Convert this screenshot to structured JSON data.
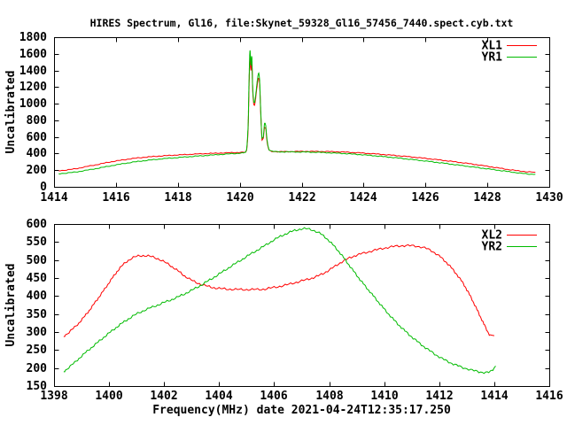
{
  "title": "HIRES Spectrum, Gl16, file:Skynet_59328_Gl16_57456_7440.spect.cyb.txt",
  "colors": {
    "series_red": "#ff0000",
    "series_green": "#00bb00",
    "axis": "#000000",
    "background": "#ffffff"
  },
  "chart_data": [
    {
      "type": "line",
      "title": "",
      "xlabel": "",
      "ylabel": "Uncalibrated",
      "xlim": [
        1414,
        1430
      ],
      "ylim": [
        0,
        1800
      ],
      "xticks": [
        1414,
        1416,
        1418,
        1420,
        1422,
        1424,
        1426,
        1428,
        1430
      ],
      "yticks": [
        0,
        200,
        400,
        600,
        800,
        1000,
        1200,
        1400,
        1600,
        1800
      ],
      "grid": false,
      "legend_position": "top-right-inside",
      "series": [
        {
          "name": "XL1",
          "color": "#ff0000",
          "points": [
            [
              1414.15,
              195
            ],
            [
              1414.4,
              202
            ],
            [
              1414.7,
              218
            ],
            [
              1415.0,
              240
            ],
            [
              1415.4,
              268
            ],
            [
              1415.8,
              298
            ],
            [
              1416.2,
              322
            ],
            [
              1416.6,
              343
            ],
            [
              1417.0,
              358
            ],
            [
              1417.5,
              372
            ],
            [
              1418.0,
              383
            ],
            [
              1418.5,
              393
            ],
            [
              1419.0,
              401
            ],
            [
              1419.5,
              408
            ],
            [
              1420.0,
              414
            ],
            [
              1420.15,
              416
            ],
            [
              1420.22,
              440
            ],
            [
              1420.27,
              700
            ],
            [
              1420.3,
              1200
            ],
            [
              1420.33,
              1570
            ],
            [
              1420.36,
              1400
            ],
            [
              1420.39,
              1500
            ],
            [
              1420.42,
              1150
            ],
            [
              1420.46,
              980
            ],
            [
              1420.5,
              1030
            ],
            [
              1420.55,
              1180
            ],
            [
              1420.6,
              1300
            ],
            [
              1420.64,
              1240
            ],
            [
              1420.68,
              860
            ],
            [
              1420.72,
              560
            ],
            [
              1420.76,
              580
            ],
            [
              1420.8,
              720
            ],
            [
              1420.84,
              700
            ],
            [
              1420.88,
              550
            ],
            [
              1420.93,
              460
            ],
            [
              1421.0,
              430
            ],
            [
              1421.3,
              423
            ],
            [
              1421.8,
              425
            ],
            [
              1422.3,
              426
            ],
            [
              1422.8,
              424
            ],
            [
              1423.3,
              419
            ],
            [
              1423.8,
              410
            ],
            [
              1424.3,
              398
            ],
            [
              1424.8,
              384
            ],
            [
              1425.3,
              368
            ],
            [
              1425.8,
              350
            ],
            [
              1426.3,
              330
            ],
            [
              1426.8,
              308
            ],
            [
              1427.3,
              284
            ],
            [
              1427.8,
              258
            ],
            [
              1428.3,
              230
            ],
            [
              1428.7,
              207
            ],
            [
              1429.1,
              188
            ],
            [
              1429.35,
              179
            ],
            [
              1429.55,
              176
            ]
          ]
        },
        {
          "name": "YR1",
          "color": "#00bb00",
          "points": [
            [
              1414.15,
              158
            ],
            [
              1414.4,
              165
            ],
            [
              1414.7,
              178
            ],
            [
              1415.0,
              196
            ],
            [
              1415.4,
              222
            ],
            [
              1415.8,
              250
            ],
            [
              1416.2,
              276
            ],
            [
              1416.6,
              299
            ],
            [
              1417.0,
              318
            ],
            [
              1417.5,
              337
            ],
            [
              1418.0,
              352
            ],
            [
              1418.5,
              366
            ],
            [
              1419.0,
              379
            ],
            [
              1419.5,
              392
            ],
            [
              1420.0,
              405
            ],
            [
              1420.15,
              412
            ],
            [
              1420.22,
              450
            ],
            [
              1420.27,
              750
            ],
            [
              1420.3,
              1280
            ],
            [
              1420.33,
              1640
            ],
            [
              1420.36,
              1460
            ],
            [
              1420.39,
              1560
            ],
            [
              1420.42,
              1180
            ],
            [
              1420.46,
              1010
            ],
            [
              1420.5,
              1060
            ],
            [
              1420.55,
              1220
            ],
            [
              1420.6,
              1360
            ],
            [
              1420.64,
              1290
            ],
            [
              1420.68,
              890
            ],
            [
              1420.72,
              580
            ],
            [
              1420.76,
              600
            ],
            [
              1420.8,
              760
            ],
            [
              1420.84,
              730
            ],
            [
              1420.88,
              570
            ],
            [
              1420.93,
              470
            ],
            [
              1421.0,
              432
            ],
            [
              1421.3,
              421
            ],
            [
              1421.8,
              420
            ],
            [
              1422.3,
              417
            ],
            [
              1422.8,
              411
            ],
            [
              1423.3,
              402
            ],
            [
              1423.8,
              390
            ],
            [
              1424.3,
              375
            ],
            [
              1424.8,
              358
            ],
            [
              1425.3,
              339
            ],
            [
              1425.8,
              319
            ],
            [
              1426.3,
              297
            ],
            [
              1426.8,
              274
            ],
            [
              1427.3,
              250
            ],
            [
              1427.8,
              226
            ],
            [
              1428.3,
              202
            ],
            [
              1428.7,
              182
            ],
            [
              1429.1,
              163
            ],
            [
              1429.35,
              153
            ],
            [
              1429.55,
              152
            ]
          ]
        }
      ]
    },
    {
      "type": "line",
      "title": "",
      "xlabel": "Frequency(MHz) date 2021-04-24T12:35:17.250",
      "ylabel": "Uncalibrated",
      "xlim": [
        1398,
        1416
      ],
      "ylim": [
        150,
        600
      ],
      "xticks": [
        1398,
        1400,
        1402,
        1404,
        1406,
        1408,
        1410,
        1412,
        1414,
        1416
      ],
      "yticks": [
        150,
        200,
        250,
        300,
        350,
        400,
        450,
        500,
        550,
        600
      ],
      "grid": false,
      "legend_position": "top-right-inside",
      "series": [
        {
          "name": "XL2",
          "color": "#ff0000",
          "points": [
            [
              1398.35,
              288
            ],
            [
              1398.6,
              303
            ],
            [
              1398.9,
              325
            ],
            [
              1399.2,
              352
            ],
            [
              1399.5,
              383
            ],
            [
              1399.8,
              415
            ],
            [
              1400.1,
              448
            ],
            [
              1400.4,
              478
            ],
            [
              1400.7,
              499
            ],
            [
              1401.0,
              510
            ],
            [
              1401.3,
              512
            ],
            [
              1401.6,
              508
            ],
            [
              1401.9,
              499
            ],
            [
              1402.2,
              486
            ],
            [
              1402.5,
              470
            ],
            [
              1402.8,
              453
            ],
            [
              1403.1,
              440
            ],
            [
              1403.4,
              431
            ],
            [
              1403.7,
              425
            ],
            [
              1404.0,
              421
            ],
            [
              1404.4,
              419
            ],
            [
              1404.8,
              418
            ],
            [
              1405.2,
              418
            ],
            [
              1405.6,
              419
            ],
            [
              1406.0,
              424
            ],
            [
              1406.4,
              430
            ],
            [
              1406.8,
              438
            ],
            [
              1407.2,
              446
            ],
            [
              1407.6,
              456
            ],
            [
              1408.0,
              472
            ],
            [
              1408.4,
              492
            ],
            [
              1408.8,
              508
            ],
            [
              1409.2,
              518
            ],
            [
              1409.6,
              526
            ],
            [
              1410.0,
              533
            ],
            [
              1410.4,
              538
            ],
            [
              1410.8,
              540
            ],
            [
              1411.2,
              538
            ],
            [
              1411.6,
              530
            ],
            [
              1412.0,
              511
            ],
            [
              1412.4,
              482
            ],
            [
              1412.8,
              443
            ],
            [
              1413.1,
              404
            ],
            [
              1413.4,
              358
            ],
            [
              1413.65,
              318
            ],
            [
              1413.85,
              291
            ],
            [
              1414.0,
              290
            ]
          ]
        },
        {
          "name": "YR2",
          "color": "#00bb00",
          "points": [
            [
              1398.35,
              190
            ],
            [
              1398.7,
              212
            ],
            [
              1399.0,
              233
            ],
            [
              1399.3,
              253
            ],
            [
              1399.6,
              272
            ],
            [
              1399.9,
              291
            ],
            [
              1400.2,
              309
            ],
            [
              1400.5,
              326
            ],
            [
              1400.8,
              341
            ],
            [
              1401.1,
              354
            ],
            [
              1401.4,
              364
            ],
            [
              1401.7,
              373
            ],
            [
              1402.0,
              382
            ],
            [
              1402.4,
              394
            ],
            [
              1402.8,
              408
            ],
            [
              1403.2,
              424
            ],
            [
              1403.6,
              442
            ],
            [
              1404.0,
              461
            ],
            [
              1404.4,
              481
            ],
            [
              1404.8,
              500
            ],
            [
              1405.2,
              519
            ],
            [
              1405.6,
              537
            ],
            [
              1406.0,
              556
            ],
            [
              1406.4,
              572
            ],
            [
              1406.8,
              583
            ],
            [
              1407.1,
              587
            ],
            [
              1407.4,
              583
            ],
            [
              1407.7,
              572
            ],
            [
              1408.0,
              553
            ],
            [
              1408.4,
              519
            ],
            [
              1408.8,
              478
            ],
            [
              1409.2,
              438
            ],
            [
              1409.6,
              401
            ],
            [
              1410.0,
              364
            ],
            [
              1410.4,
              330
            ],
            [
              1410.8,
              300
            ],
            [
              1411.2,
              274
            ],
            [
              1411.6,
              251
            ],
            [
              1412.0,
              231
            ],
            [
              1412.4,
              215
            ],
            [
              1412.8,
              203
            ],
            [
              1413.2,
              194
            ],
            [
              1413.5,
              189
            ],
            [
              1413.8,
              188
            ],
            [
              1413.95,
              196
            ],
            [
              1414.05,
              206
            ]
          ]
        }
      ]
    }
  ]
}
